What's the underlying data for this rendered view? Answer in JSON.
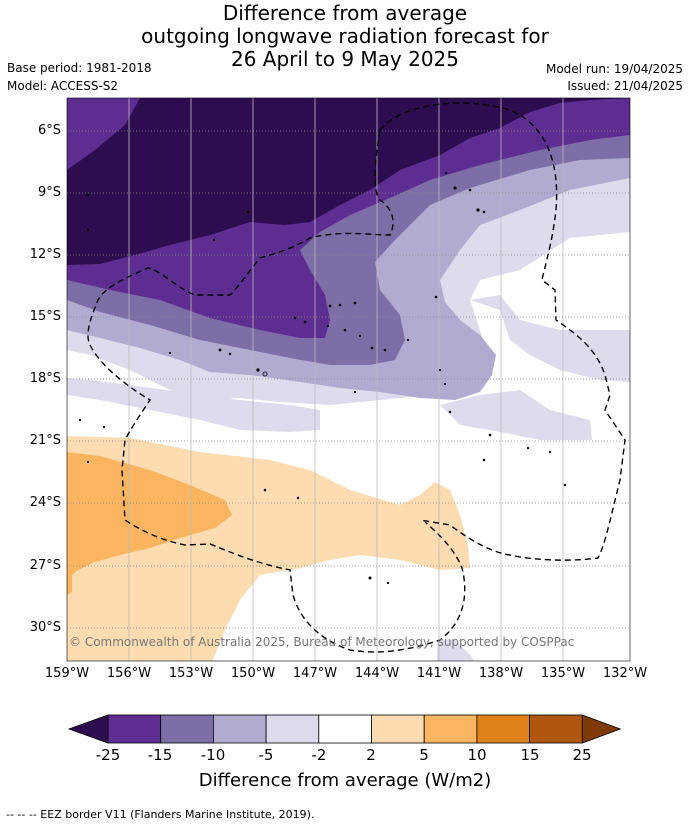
{
  "title": {
    "line1": "Difference from average",
    "line2": "outgoing longwave radiation forecast for",
    "line3": "26 April to 9 May 2025"
  },
  "meta": {
    "base_period": "Base period: 1981-2018",
    "model": "Model: ACCESS-S2",
    "model_run": "Model run: 19/04/2025",
    "issued": "Issued: 21/04/2025"
  },
  "y_ticks": [
    "6°S",
    "9°S",
    "12°S",
    "15°S",
    "18°S",
    "21°S",
    "24°S",
    "27°S",
    "30°S"
  ],
  "x_ticks": [
    "159°W",
    "156°W",
    "153°W",
    "150°W",
    "147°W",
    "144°W",
    "141°W",
    "138°W",
    "135°W",
    "132°W"
  ],
  "copyright": "© Commonwealth of Australia 2025, Bureau of Meteorology, supported by COSPPac",
  "colorbar": {
    "labels": [
      "-25",
      "-15",
      "-10",
      "-5",
      "-2",
      "2",
      "5",
      "10",
      "15",
      "25"
    ],
    "colors": [
      "#2d0c4f",
      "#5e2d91",
      "#7e6ea8",
      "#b1abd2",
      "#dcdcec",
      "#ffffff",
      "#fddcb2",
      "#fbb560",
      "#e1811b",
      "#b0560d",
      "#7f3a08"
    ],
    "title": "Difference from average (W/m2)"
  },
  "footnote": "--  --  -- EEZ border V11 (Flanders Marine Institute, 2019)."
}
